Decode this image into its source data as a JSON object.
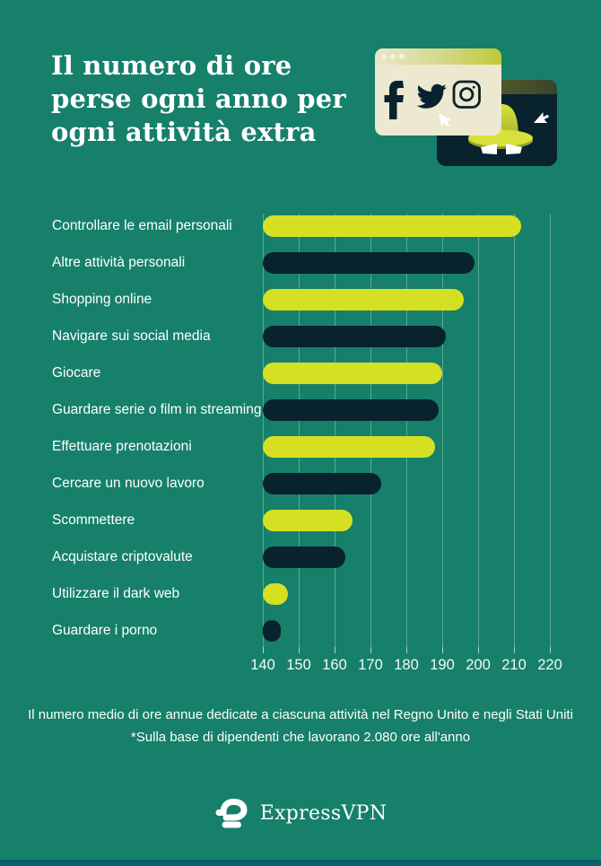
{
  "header": {
    "title_lines": [
      "Il numero di ore",
      "perse ogni anno per",
      "ogni attività extra"
    ]
  },
  "illustration": {
    "icons": [
      "facebook-icon",
      "twitter-icon",
      "instagram-icon",
      "spy-hat-icon",
      "cursor-icon"
    ],
    "colors": {
      "browser_body": "#ECE9D0",
      "browser_bar_left": "#EAE7C9",
      "browser_bar_right": "#BFCB33",
      "card_navy": "#08222E",
      "card_band_olive": "#525D2C",
      "hat_lime": "#D8E139",
      "hat_shadow": "#929F2B",
      "icon_navy": "#08222E",
      "cursor_white": "#FFFFFF"
    }
  },
  "chart_data": {
    "type": "bar",
    "orientation": "horizontal",
    "title": "Il numero di ore perse ogni anno per ogni attività extra",
    "categories": [
      "Controllare le email personali",
      "Altre attività personali",
      "Shopping online",
      "Navigare sui social media",
      "Giocare",
      "Guardare serie o film in streaming",
      "Effettuare prenotazioni",
      "Cercare un nuovo lavoro",
      "Scommettere",
      "Acquistare criptovalute",
      "Utilizzare il dark web",
      "Guardare i porno"
    ],
    "values": [
      212,
      199,
      196,
      191,
      190,
      189,
      188,
      173,
      165,
      163,
      147,
      145
    ],
    "bar_colors": [
      "#D6E022",
      "#08222E",
      "#D6E022",
      "#08222E",
      "#D6E022",
      "#08222E",
      "#D6E022",
      "#08222E",
      "#D6E022",
      "#08222E",
      "#D6E022",
      "#08222E"
    ],
    "xlim": [
      140,
      220
    ],
    "xticks": [
      140,
      150,
      160,
      170,
      180,
      190,
      200,
      210,
      220
    ],
    "grid": true,
    "gridline_color": "rgba(255,255,255,0.3)",
    "colors": {
      "background": "#16806A",
      "lime": "#D6E022",
      "navy": "#08222E",
      "label_text": "#FFFFFF"
    }
  },
  "footnote": {
    "line1": "Il numero medio di ore annue dedicate a ciascuna attività nel Regno Unito e negli Stati Uniti",
    "line2": "*Sulla base di dipendenti che lavorano 2.080 ore all'anno"
  },
  "brand": {
    "name": "ExpressVPN"
  }
}
